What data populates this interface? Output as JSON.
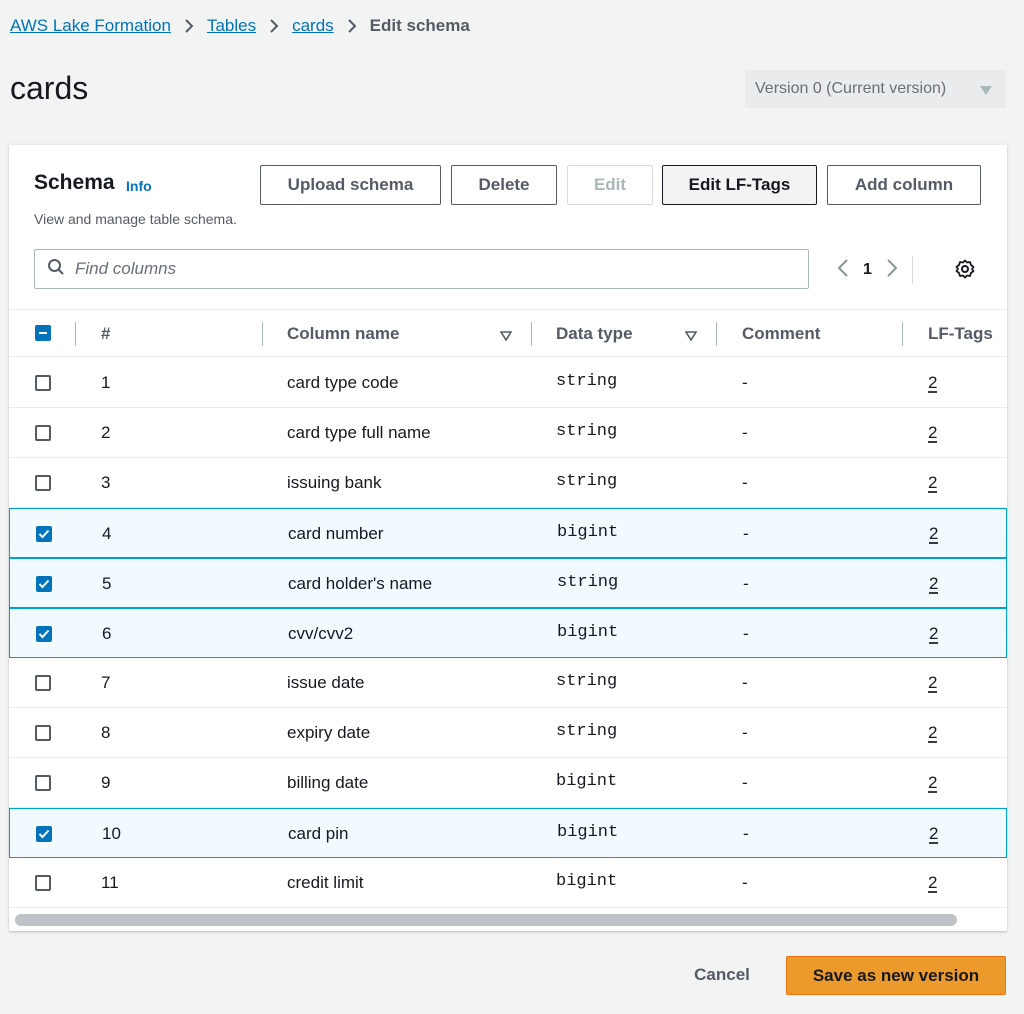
{
  "breadcrumb": {
    "items": [
      "AWS Lake Formation",
      "Tables",
      "cards"
    ],
    "current": "Edit schema"
  },
  "page": {
    "title": "cards",
    "version_select": "Version 0 (Current version)"
  },
  "schema": {
    "title": "Schema",
    "info_label": "Info",
    "description": "View and manage table schema.",
    "buttons": {
      "upload": "Upload schema",
      "delete": "Delete",
      "edit": "Edit",
      "edit_lf_tags": "Edit LF-Tags",
      "add_column": "Add column"
    },
    "search": {
      "placeholder": "Find columns",
      "value": ""
    },
    "pagination": {
      "page": "1"
    },
    "columns": {
      "num": "#",
      "name": "Column name",
      "type": "Data type",
      "comment": "Comment",
      "lf_tags": "LF-Tags"
    },
    "rows": [
      {
        "num": "1",
        "name": "card type code",
        "type": "string",
        "comment": "-",
        "lf": "2",
        "selected": false
      },
      {
        "num": "2",
        "name": "card type full name",
        "type": "string",
        "comment": "-",
        "lf": "2",
        "selected": false
      },
      {
        "num": "3",
        "name": "issuing bank",
        "type": "string",
        "comment": "-",
        "lf": "2",
        "selected": false
      },
      {
        "num": "4",
        "name": "card number",
        "type": "bigint",
        "comment": "-",
        "lf": "2",
        "selected": true
      },
      {
        "num": "5",
        "name": "card holder's name",
        "type": "string",
        "comment": "-",
        "lf": "2",
        "selected": true
      },
      {
        "num": "6",
        "name": "cvv/cvv2",
        "type": "bigint",
        "comment": "-",
        "lf": "2",
        "selected": true
      },
      {
        "num": "7",
        "name": "issue date",
        "type": "string",
        "comment": "-",
        "lf": "2",
        "selected": false
      },
      {
        "num": "8",
        "name": "expiry date",
        "type": "string",
        "comment": "-",
        "lf": "2",
        "selected": false
      },
      {
        "num": "9",
        "name": "billing date",
        "type": "bigint",
        "comment": "-",
        "lf": "2",
        "selected": false
      },
      {
        "num": "10",
        "name": "card pin",
        "type": "bigint",
        "comment": "-",
        "lf": "2",
        "selected": true
      },
      {
        "num": "11",
        "name": "credit limit",
        "type": "bigint",
        "comment": "-",
        "lf": "2",
        "selected": false
      }
    ]
  },
  "footer": {
    "cancel": "Cancel",
    "save": "Save as new version"
  },
  "colors": {
    "link": "#0073bb",
    "primary_button": "#ec9a2c",
    "selected_row_bg": "#f1faff",
    "selected_row_border": "#00a1c9",
    "checkbox_checked": "#0073bb"
  }
}
